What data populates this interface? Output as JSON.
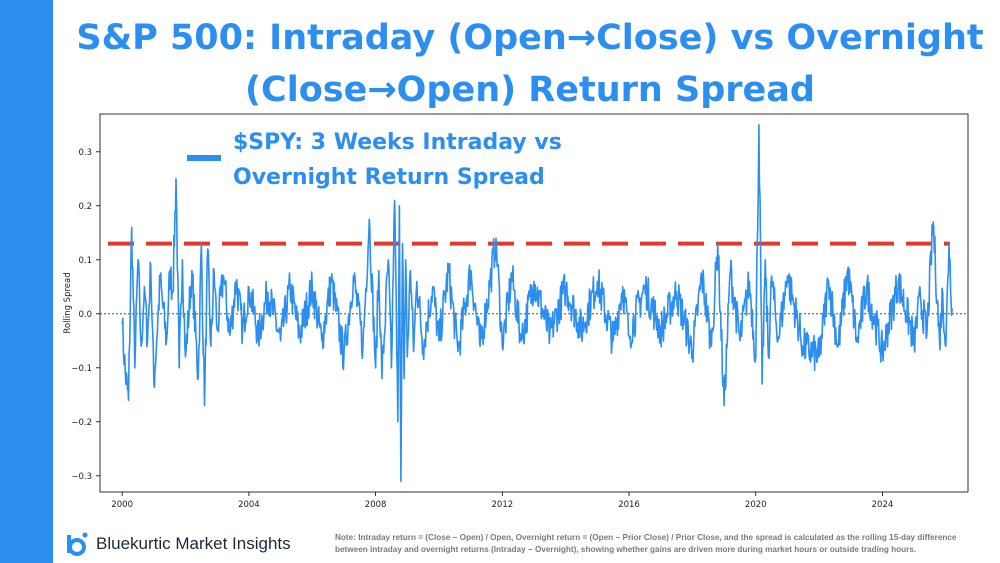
{
  "title_line1": "S&P 500: Intraday (Open→Close) vs Overnight",
  "title_line2": "(Close→Open) Return Spread",
  "legend_line1": "$SPY: 3 Weeks Intraday vs",
  "legend_line2": "Overnight Return Spread",
  "brand": "Bluekurtic Market Insights",
  "note_line1": "Note: Intraday return = (Close − Open) / Open, Overnight return = (Open − Prior Close) / Prior Close, and the spread is calculated as the rolling 15-day difference",
  "note_line2": "between intraday and overnight returns (Intraday − Overnight), showing whether gains are driven more during market hours or outside trading hours.",
  "colors": {
    "accent": "#2b8ef0",
    "series": "#2b8ef0",
    "threshold": "#e03a2f"
  },
  "chart_data": {
    "type": "line",
    "title": "S&P 500: Intraday (Open→Close) vs Overnight (Close→Open) Return Spread",
    "xlabel": "",
    "ylabel": "Rolling Spread",
    "xlim": [
      1999.3,
      2026.7
    ],
    "ylim": [
      -0.33,
      0.37
    ],
    "x_ticks": [
      2000,
      2004,
      2008,
      2012,
      2016,
      2020,
      2024
    ],
    "x_tick_labels": [
      "2000",
      "2004",
      "2008",
      "2012",
      "2016",
      "2020",
      "2024"
    ],
    "y_ticks": [
      -0.3,
      -0.2,
      -0.1,
      0.0,
      0.1,
      0.2,
      0.3
    ],
    "y_tick_labels": [
      "−0.3",
      "−0.2",
      "−0.1",
      "0.0",
      "0.1",
      "0.2",
      "0.3"
    ],
    "reference_lines": [
      {
        "name": "zero",
        "y": 0.0,
        "style": "dotted"
      },
      {
        "name": "threshold",
        "y": 0.13,
        "style": "dashed"
      }
    ],
    "legend_placement": "top-left",
    "series": [
      {
        "name": "$SPY: 3 Weeks Intraday vs Overnight Return Spread",
        "x": [
          2000.0,
          2000.1,
          2000.2,
          2000.3,
          2000.4,
          2000.5,
          2000.6,
          2000.7,
          2000.8,
          2000.9,
          2001.0,
          2001.2,
          2001.4,
          2001.5,
          2001.6,
          2001.7,
          2001.8,
          2001.9,
          2002.0,
          2002.2,
          2002.4,
          2002.5,
          2002.6,
          2002.7,
          2002.8,
          2002.9,
          2003.0,
          2003.2,
          2003.4,
          2003.6,
          2003.8,
          2004.0,
          2004.3,
          2004.6,
          2005.0,
          2005.3,
          2005.6,
          2006.0,
          2006.3,
          2006.6,
          2007.0,
          2007.3,
          2007.6,
          2007.8,
          2008.0,
          2008.1,
          2008.2,
          2008.4,
          2008.5,
          2008.6,
          2008.7,
          2008.75,
          2008.8,
          2008.85,
          2008.9,
          2008.95,
          2009.0,
          2009.1,
          2009.2,
          2009.3,
          2009.5,
          2009.8,
          2010.0,
          2010.3,
          2010.6,
          2011.0,
          2011.3,
          2011.6,
          2011.8,
          2012.0,
          2012.3,
          2012.6,
          2013.0,
          2013.5,
          2014.0,
          2014.5,
          2015.0,
          2015.5,
          2015.8,
          2016.0,
          2016.5,
          2017.0,
          2017.5,
          2018.0,
          2018.3,
          2018.6,
          2018.8,
          2019.0,
          2019.2,
          2019.5,
          2019.8,
          2020.0,
          2020.1,
          2020.2,
          2020.3,
          2020.4,
          2020.5,
          2020.7,
          2021.0,
          2021.5,
          2022.0,
          2022.3,
          2022.6,
          2022.9,
          2023.2,
          2023.5,
          2024.0,
          2024.5,
          2025.0,
          2025.2,
          2025.4,
          2025.6,
          2025.8,
          2025.9,
          2026.0,
          2026.1,
          2026.2
        ],
        "values": [
          -0.02,
          -0.11,
          -0.16,
          0.16,
          -0.1,
          0.1,
          -0.06,
          0.05,
          -0.05,
          0.09,
          -0.13,
          0.06,
          -0.05,
          0.08,
          0.04,
          0.25,
          -0.1,
          0.1,
          -0.08,
          0.08,
          -0.12,
          0.13,
          -0.17,
          0.12,
          -0.06,
          0.08,
          -0.03,
          0.07,
          -0.04,
          0.06,
          -0.03,
          0.05,
          -0.04,
          0.04,
          -0.05,
          0.05,
          -0.04,
          0.05,
          -0.05,
          0.06,
          -0.08,
          0.07,
          -0.06,
          0.175,
          -0.1,
          0.08,
          -0.12,
          0.1,
          -0.1,
          0.21,
          -0.2,
          0.2,
          -0.31,
          0.13,
          -0.12,
          0.1,
          -0.08,
          0.08,
          -0.07,
          0.06,
          -0.06,
          0.05,
          -0.05,
          0.08,
          -0.07,
          0.08,
          -0.06,
          0.05,
          0.14,
          -0.06,
          0.07,
          -0.05,
          0.06,
          -0.04,
          0.05,
          -0.03,
          0.06,
          -0.05,
          0.05,
          -0.04,
          0.05,
          -0.03,
          0.04,
          -0.07,
          0.07,
          -0.06,
          0.13,
          -0.17,
          0.08,
          -0.05,
          0.06,
          -0.08,
          0.35,
          -0.13,
          0.1,
          -0.08,
          0.07,
          -0.05,
          0.07,
          -0.06,
          -0.08,
          0.06,
          -0.06,
          0.08,
          -0.05,
          0.05,
          -0.07,
          0.06,
          -0.05,
          0.03,
          -0.04,
          0.17,
          -0.05,
          0.04,
          -0.06,
          0.13,
          0.01
        ]
      }
    ]
  }
}
